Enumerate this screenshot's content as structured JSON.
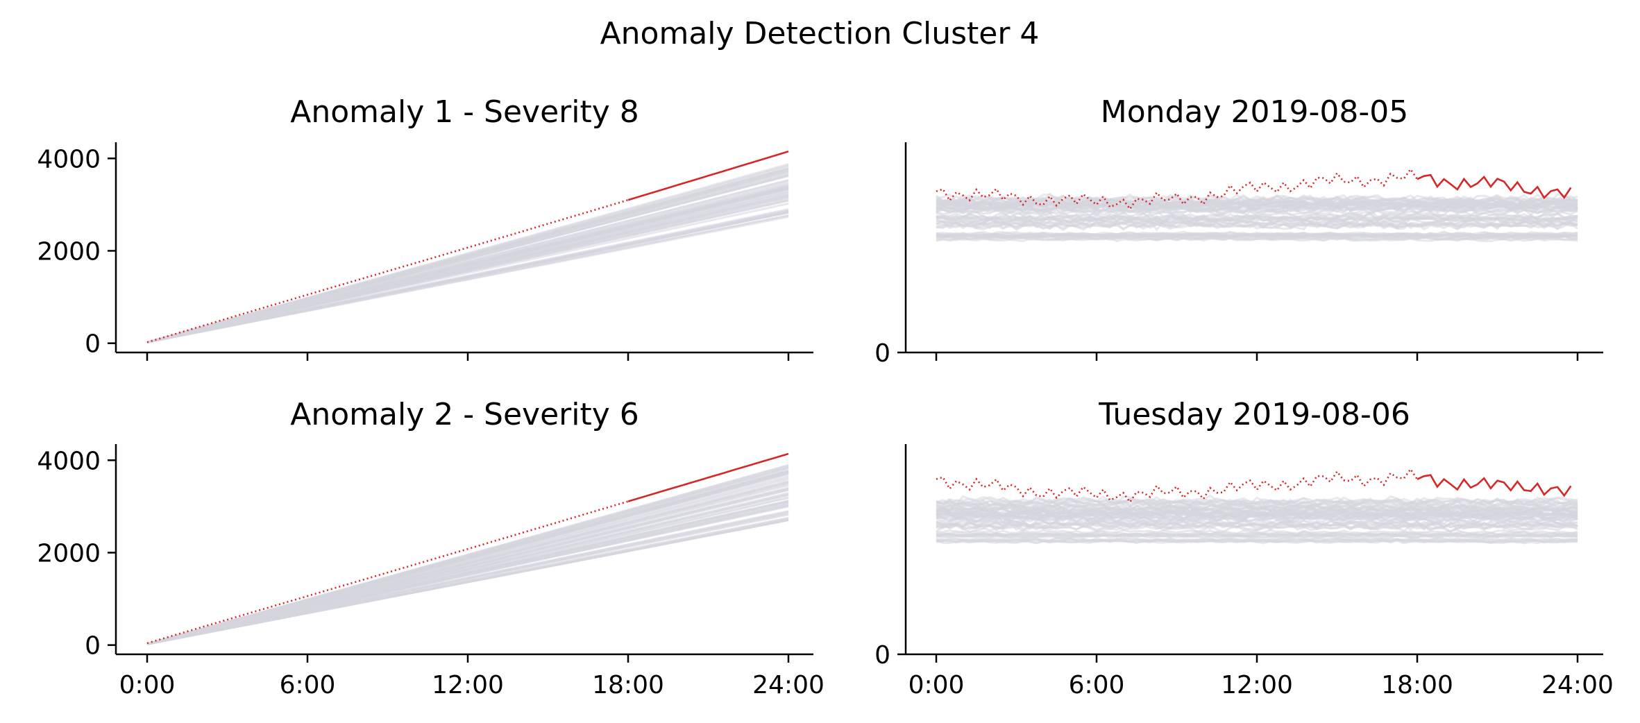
{
  "figure": {
    "title": "Anomaly Detection Cluster 4"
  },
  "colors": {
    "highlight": "#d62728",
    "background_series": "#d5d5de",
    "axis": "#000000"
  },
  "x_tick_labels": [
    "0:00",
    "6:00",
    "12:00",
    "18:00",
    "24:00"
  ],
  "chart_data": [
    {
      "type": "line",
      "title": "Anomaly 1 - Severity 8",
      "xlabel": "",
      "ylabel": "",
      "x_range_hours": [
        0,
        24
      ],
      "ylim": [
        -200,
        4350
      ],
      "yticks": [
        0,
        2000,
        4000
      ],
      "grid": false,
      "cumulative": true,
      "reference_series": "many light-gray daily series, ending between about 2700 and 3900",
      "series": [
        {
          "style": "dotted until 18:00, solid after",
          "x_hours": [
            0,
            6,
            12,
            18,
            24
          ],
          "y": [
            20,
            1050,
            2070,
            3100,
            4150
          ]
        }
      ]
    },
    {
      "type": "line",
      "title": "Monday 2019-08-05",
      "xlabel": "",
      "ylabel": "",
      "x_range_hours": [
        0,
        24
      ],
      "yticks": [
        0
      ],
      "grid": false,
      "cumulative": false,
      "series": [
        {
          "style": "dotted until 18:00, solid after",
          "x_hours": [
            0,
            3,
            6,
            9,
            12,
            15,
            18,
            19.5,
            21,
            22.5,
            23.75
          ],
          "y": [
            46,
            44,
            43,
            43.5,
            47,
            49,
            50,
            48.5,
            48,
            46.5,
            45
          ]
        }
      ]
    },
    {
      "type": "line",
      "title": "Anomaly 2 - Severity 6",
      "xlabel": "",
      "ylabel": "",
      "x_range_hours": [
        0,
        24
      ],
      "ylim": [
        -200,
        4350
      ],
      "yticks": [
        0,
        2000,
        4000
      ],
      "grid": false,
      "cumulative": true,
      "reference_series": "many light-gray daily series, ending between about 2700 and 3900",
      "series": [
        {
          "style": "dotted until 18:00, solid after",
          "x_hours": [
            0,
            6,
            12,
            18,
            24
          ],
          "y": [
            40,
            1060,
            2080,
            3110,
            4140
          ]
        }
      ]
    },
    {
      "type": "line",
      "title": "Tuesday 2019-08-06",
      "xlabel": "",
      "ylabel": "",
      "x_range_hours": [
        0,
        24
      ],
      "yticks": [
        0
      ],
      "grid": false,
      "cumulative": false,
      "series": [
        {
          "style": "dotted until 18:00, solid after",
          "x_hours": [
            0,
            3,
            6,
            9,
            12,
            15,
            18,
            19.5,
            21,
            22.5,
            23.75
          ],
          "y": [
            50,
            47,
            45.5,
            46,
            48,
            50,
            50.5,
            49,
            48,
            48,
            46
          ]
        }
      ]
    }
  ]
}
